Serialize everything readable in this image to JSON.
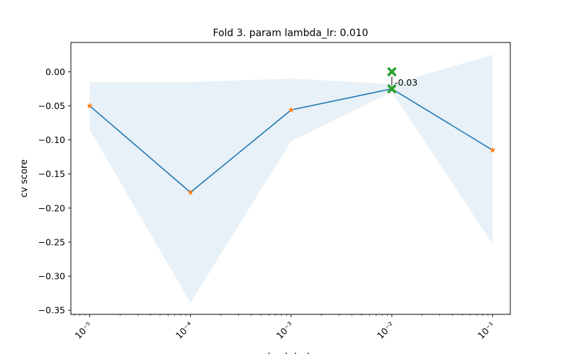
{
  "chart_data": {
    "type": "line",
    "title": "Fold 3. param lambda_lr: 0.010",
    "xlabel": "lambda_lr",
    "ylabel": "cv score",
    "x_scale": "log",
    "xlim": [
      6.5e-06,
      0.15
    ],
    "ylim": [
      -0.356,
      0.043
    ],
    "x": [
      1e-05,
      0.0001,
      0.001,
      0.01,
      0.1
    ],
    "x_tick_labels": [
      "10⁻⁵",
      "10⁻⁴",
      "10⁻³",
      "10⁻²",
      "10⁻¹"
    ],
    "y_ticks": [
      0.0,
      -0.05,
      -0.1,
      -0.15,
      -0.2,
      -0.25,
      -0.3,
      -0.35
    ],
    "y_tick_labels": [
      "0.00",
      "−0.05",
      "−0.10",
      "−0.15",
      "−0.20",
      "−0.25",
      "−0.30",
      "−0.35"
    ],
    "series": [
      {
        "values": [
          -0.05,
          -0.177,
          -0.056,
          -0.025,
          -0.115
        ],
        "line_color": "#1f77b4",
        "marker_color": "#ff7f0e",
        "band_lower": [
          -0.085,
          -0.339,
          -0.102,
          -0.03,
          -0.253
        ],
        "band_upper": [
          -0.015,
          -0.015,
          -0.01,
          -0.018,
          0.025
        ],
        "band_color": "#1f77b4"
      }
    ],
    "highlights": [
      {
        "x": 0.01,
        "y": 0.0,
        "color": "#2ca02c"
      },
      {
        "x": 0.01,
        "y": -0.025,
        "color": "#2ca02c"
      }
    ],
    "annotation": {
      "x": 0.01,
      "y": -0.016,
      "text": "-0.03"
    },
    "grid": false,
    "legend": "none"
  }
}
